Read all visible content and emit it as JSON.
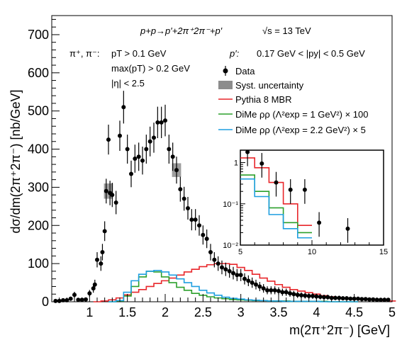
{
  "chart_data": {
    "type": "line",
    "xlabel": "m(2π⁺2π⁻) [GeV]",
    "ylabel": "dσ/dm(2π⁺2π⁻) [nb/GeV]",
    "xlim": [
      0.5,
      5.0
    ],
    "ylim": [
      0,
      750
    ],
    "x_ticks": [
      "1",
      "1.5",
      "2",
      "2.5",
      "3",
      "3.5",
      "4",
      "4.5",
      "5"
    ],
    "y_ticks": [
      "0",
      "100",
      "200",
      "300",
      "400",
      "500",
      "600",
      "700"
    ],
    "annotations": {
      "process": "p+p→p′+2π⁺2π⁻+p′",
      "energy": "√s = 13 TeV",
      "pion_label": "π⁺, π⁻:",
      "cut_pt": "pT > 0.1 GeV",
      "cut_maxpt": "max(pT) > 0.2 GeV",
      "cut_eta": "|η| < 2.5",
      "proton_label": "p′:",
      "cut_py": "0.17 GeV < |py| < 0.5 GeV"
    },
    "legend": {
      "placement": "top-right",
      "entries": [
        {
          "label": "Data",
          "style": "marker",
          "color": "#000000"
        },
        {
          "label": "Syst. uncertainty",
          "style": "box",
          "color": "#8c8c8c"
        },
        {
          "label": "Pythia 8 MBR",
          "style": "line",
          "color": "#e8262a"
        },
        {
          "label": "DiMe ρρ (Λ²exp = 1 GeV²) × 100",
          "style": "line",
          "color": "#2ca02c"
        },
        {
          "label": "DiMe ρρ (Λ²exp = 2.2 GeV²) × 5",
          "style": "line",
          "color": "#1f9fe0"
        }
      ]
    },
    "data": {
      "name": "Data",
      "x": [
        0.55,
        0.6,
        0.65,
        0.7,
        0.75,
        0.8,
        0.85,
        0.9,
        0.95,
        1.0,
        1.05,
        1.07,
        1.1,
        1.15,
        1.17,
        1.2,
        1.22,
        1.25,
        1.27,
        1.3,
        1.35,
        1.4,
        1.45,
        1.5,
        1.55,
        1.6,
        1.65,
        1.7,
        1.75,
        1.8,
        1.85,
        1.9,
        1.95,
        2.0,
        2.05,
        2.1,
        2.15,
        2.2,
        2.25,
        2.3,
        2.35,
        2.4,
        2.45,
        2.5,
        2.55,
        2.6,
        2.65,
        2.7,
        2.75,
        2.8,
        2.85,
        2.9,
        2.95,
        3.0,
        3.05,
        3.1,
        3.15,
        3.2,
        3.25,
        3.3,
        3.35,
        3.4,
        3.45,
        3.5,
        3.55,
        3.6,
        3.65,
        3.7,
        3.75,
        3.8,
        3.85,
        3.9,
        3.95,
        4.0,
        4.05,
        4.1,
        4.15,
        4.2,
        4.25,
        4.3,
        4.35,
        4.4,
        4.45,
        4.5,
        4.55,
        4.6,
        4.65,
        4.7,
        4.75,
        4.8,
        4.85,
        4.9,
        4.95
      ],
      "y": [
        2,
        2,
        4,
        4,
        8,
        18,
        5,
        5,
        6,
        22,
        35,
        45,
        110,
        100,
        130,
        185,
        290,
        425,
        285,
        280,
        260,
        435,
        510,
        400,
        335,
        375,
        380,
        370,
        400,
        420,
        430,
        470,
        470,
        475,
        400,
        380,
        345,
        295,
        270,
        245,
        215,
        215,
        200,
        175,
        165,
        130,
        110,
        100,
        90,
        85,
        80,
        75,
        70,
        70,
        60,
        55,
        50,
        45,
        40,
        35,
        30,
        30,
        30,
        28,
        25,
        25,
        22,
        20,
        18,
        17,
        16,
        15,
        15,
        14,
        13,
        12,
        12,
        10,
        10,
        10,
        9,
        9,
        8,
        8,
        8,
        7,
        7,
        6,
        6,
        5,
        5,
        5,
        5
      ]
    },
    "series": [
      {
        "name": "Pythia 8 MBR",
        "color": "#e8262a",
        "x": [
          1.1,
          1.2,
          1.3,
          1.4,
          1.5,
          1.6,
          1.7,
          1.8,
          1.9,
          2.0,
          2.1,
          2.2,
          2.3,
          2.4,
          2.5,
          2.6,
          2.7,
          2.8,
          2.9,
          3.0,
          3.1,
          3.2,
          3.3,
          3.4,
          3.5,
          3.6,
          3.7,
          3.8,
          3.9,
          4.0,
          4.1,
          4.2,
          4.3,
          4.4,
          4.5,
          4.6,
          4.7,
          4.8,
          4.9,
          5.0
        ],
        "y": [
          0,
          2,
          5,
          10,
          18,
          25,
          32,
          40,
          48,
          55,
          62,
          70,
          78,
          85,
          92,
          97,
          100,
          100,
          98,
          90,
          82,
          72,
          62,
          54,
          45,
          38,
          32,
          28,
          24,
          20,
          16,
          13,
          11,
          9,
          8,
          6,
          5,
          4,
          3,
          2
        ]
      },
      {
        "name": "DiMe ρρ (Λ²exp = 1 GeV²) × 100",
        "color": "#2ca02c",
        "x": [
          1.3,
          1.4,
          1.5,
          1.6,
          1.7,
          1.8,
          1.9,
          2.0,
          2.1,
          2.2,
          2.3,
          2.4,
          2.5,
          2.6,
          2.7,
          2.8,
          2.9,
          3.0,
          3.1,
          3.2,
          3.3,
          3.4,
          3.5,
          3.6,
          3.7,
          3.8,
          3.9,
          4.0,
          4.1,
          4.2,
          4.3,
          4.4,
          4.5
        ],
        "y": [
          0,
          2,
          15,
          40,
          65,
          80,
          78,
          65,
          50,
          38,
          30,
          22,
          17,
          13,
          10,
          8,
          6,
          5,
          4,
          3,
          3,
          2,
          2,
          2,
          1,
          1,
          1,
          1,
          1,
          0,
          0,
          0,
          0
        ]
      },
      {
        "name": "DiMe ρρ (Λ²exp = 2.2 GeV²) × 5",
        "color": "#1f9fe0",
        "x": [
          1.3,
          1.4,
          1.5,
          1.6,
          1.7,
          1.8,
          1.9,
          2.0,
          2.1,
          2.2,
          2.3,
          2.4,
          2.5,
          2.6,
          2.7,
          2.8,
          2.9,
          3.0,
          3.1,
          3.2,
          3.3,
          3.4,
          3.5,
          3.6,
          3.7,
          3.8,
          3.9,
          4.0,
          4.1,
          4.2,
          4.3,
          4.4,
          4.5
        ],
        "y": [
          0,
          3,
          25,
          55,
          72,
          80,
          82,
          78,
          70,
          60,
          50,
          40,
          30,
          23,
          17,
          12,
          9,
          7,
          5,
          4,
          3,
          2,
          2,
          1,
          1,
          1,
          1,
          1,
          0,
          0,
          0,
          0,
          0
        ]
      }
    ],
    "syst_boxes": [
      {
        "x": 1.25,
        "y": 290,
        "dy": 20
      },
      {
        "x": 2.15,
        "y": 345,
        "dy": 18
      }
    ],
    "inset": {
      "type": "line",
      "xlim": [
        5,
        15
      ],
      "ylim": [
        0.01,
        2
      ],
      "log_y": true,
      "x_ticks": [
        "5",
        "10",
        "15"
      ],
      "y_ticks": [
        "10⁻²",
        "10⁻¹",
        "1"
      ],
      "data": {
        "x": [
          5.5,
          6.5,
          7.5,
          8.5,
          9.5,
          10.5,
          12.5
        ],
        "y": [
          1.8,
          0.95,
          0.33,
          0.22,
          0.22,
          0.035,
          0.025
        ]
      },
      "series": [
        {
          "name": "Pythia 8 MBR",
          "color": "#e8262a",
          "x": [
            5,
            6,
            7,
            8,
            9
          ],
          "y": [
            1.3,
            0.75,
            0.33,
            0.1,
            0.03
          ]
        },
        {
          "name": "DiMe ρρ (Λ²exp = 1 GeV²) × 100",
          "color": "#2ca02c",
          "x": [
            5,
            6,
            7,
            8,
            9
          ],
          "y": [
            0.5,
            0.2,
            0.08,
            0.035,
            0.02
          ]
        },
        {
          "name": "DiMe ρρ (Λ²exp = 2.2 GeV²) × 5",
          "color": "#1f9fe0",
          "x": [
            5,
            6,
            7,
            8,
            9
          ],
          "y": [
            0.4,
            0.15,
            0.055,
            0.025,
            0.015
          ]
        }
      ]
    }
  }
}
